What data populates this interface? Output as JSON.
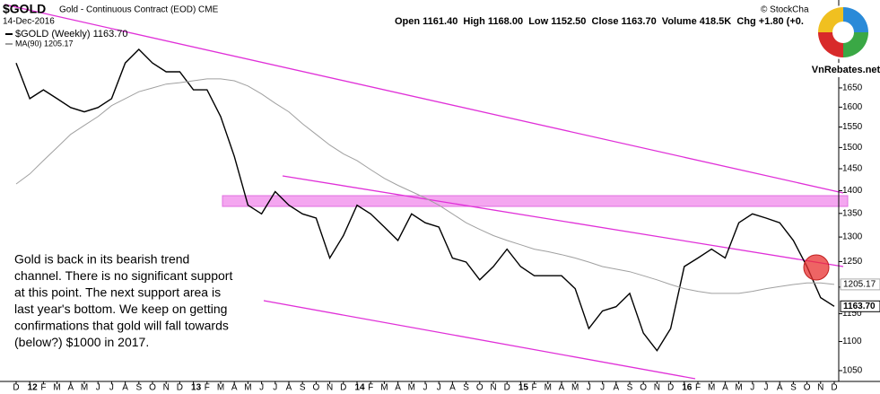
{
  "header": {
    "symbol": "$GOLD",
    "description": "Gold - Continuous Contract (EOD) CME",
    "date": "14-Dec-2016",
    "quote": "Open 1161.40  High 1168.00  Low 1152.50  Close 1163.70  Volume 418.5K  Chg +1.80 (+0.",
    "source": "© StockCha",
    "logo": "VnRebates.net"
  },
  "chart_data": {
    "type": "line",
    "log_scale": true,
    "grid": false,
    "annotation": [
      "Gold is back in its bearish trend",
      "channel. There is no significant support",
      "at this point. The next support area is",
      "last year's bottom. We keep on getting",
      "confirmations that gold will fall towards",
      "(below?) $1000 in 2017."
    ],
    "categories": [
      "D",
      "12",
      "F",
      "M",
      "A",
      "M",
      "J",
      "J",
      "A",
      "S",
      "O",
      "N",
      "D",
      "13",
      "F",
      "M",
      "A",
      "M",
      "J",
      "J",
      "A",
      "S",
      "O",
      "N",
      "D",
      "14",
      "F",
      "M",
      "A",
      "M",
      "J",
      "J",
      "A",
      "S",
      "O",
      "N",
      "D",
      "15",
      "F",
      "M",
      "A",
      "M",
      "J",
      "J",
      "A",
      "S",
      "O",
      "N",
      "D",
      "16",
      "F",
      "M",
      "A",
      "M",
      "J",
      "J",
      "A",
      "S",
      "O",
      "N",
      "D"
    ],
    "series": [
      {
        "name": "$GOLD (Weekly) 1163.70",
        "color": "#000000",
        "values": [
          1717,
          1622,
          1645,
          1622,
          1599,
          1588,
          1599,
          1622,
          1717,
          1755,
          1717,
          1693,
          1693,
          1645,
          1645,
          1576,
          1479,
          1368,
          1349,
          1398,
          1368,
          1349,
          1340,
          1257,
          1303,
          1368,
          1349,
          1321,
          1293,
          1349,
          1330,
          1321,
          1257,
          1249,
          1214,
          1240,
          1275,
          1240,
          1222,
          1222,
          1222,
          1197,
          1123,
          1155,
          1163,
          1188,
          1115,
          1084,
          1123,
          1240,
          1257,
          1275,
          1257,
          1330,
          1349,
          1340,
          1330,
          1293,
          1240,
          1180,
          1163.7
        ]
      },
      {
        "name": "MA(90) 1205.17",
        "color": "#a0a0a0",
        "values": [
          1415,
          1438,
          1469,
          1500,
          1532,
          1554,
          1576,
          1604,
          1622,
          1640,
          1650,
          1660,
          1664,
          1669,
          1674,
          1674,
          1669,
          1655,
          1634,
          1610,
          1588,
          1558,
          1532,
          1506,
          1485,
          1469,
          1448,
          1428,
          1412,
          1398,
          1384,
          1368,
          1349,
          1330,
          1316,
          1303,
          1293,
          1284,
          1275,
          1270,
          1264,
          1257,
          1249,
          1240,
          1235,
          1230,
          1222,
          1214,
          1205,
          1197,
          1192,
          1188,
          1188,
          1188,
          1192,
          1197,
          1201,
          1205,
          1208,
          1208,
          1205.17
        ]
      }
    ],
    "ylim": [
      1032,
      1899
    ],
    "yticks": [
      1050,
      1100,
      1150,
      1200,
      1250,
      1300,
      1350,
      1400,
      1450,
      1500,
      1550,
      1600,
      1650
    ],
    "last_values": [
      {
        "value": 1205.17,
        "label": "1205.17"
      },
      {
        "value": 1163.7,
        "label": "1163.70"
      }
    ]
  }
}
